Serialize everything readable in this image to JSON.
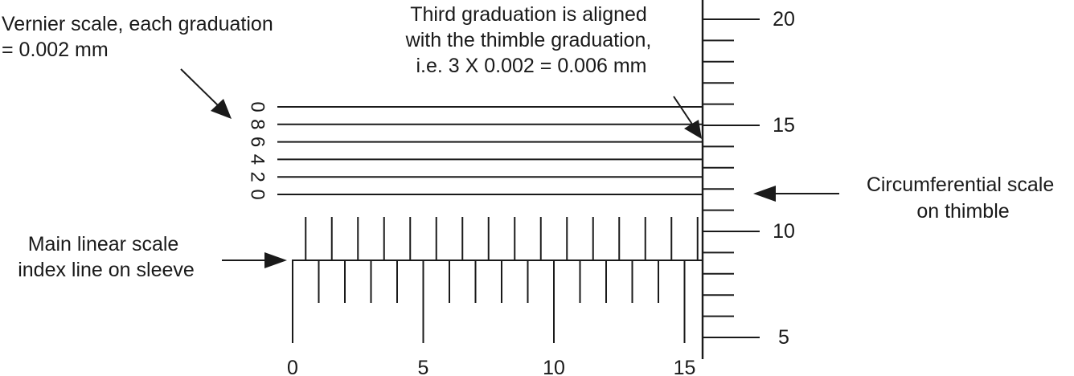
{
  "annotations": {
    "vernier_label": [
      "Vernier scale, each graduation",
      "= 0.002 mm"
    ],
    "aligned_label": [
      "Third graduation is aligned",
      "with the thimble graduation,",
      "i.e. 3 X 0.002 = 0.006 mm"
    ],
    "circumferential_label": [
      "Circumferential scale",
      "on thimble"
    ],
    "main_scale_label": [
      "Main linear scale",
      "index line on sleeve"
    ]
  },
  "vernier_scale": {
    "labels": [
      "0",
      "8",
      "6",
      "4",
      "2",
      "0"
    ],
    "aligned_index": 3
  },
  "main_scale": {
    "labels": [
      "0",
      "5",
      "10",
      "15"
    ],
    "major_positions": [
      0,
      5,
      10,
      15
    ],
    "half_mm_marks": 16,
    "mm_marks": 16
  },
  "thimble_scale": {
    "labels": [
      "20",
      "15",
      "10",
      "5"
    ],
    "values": [
      20,
      15,
      10,
      5
    ],
    "min": 4,
    "max": 21
  }
}
